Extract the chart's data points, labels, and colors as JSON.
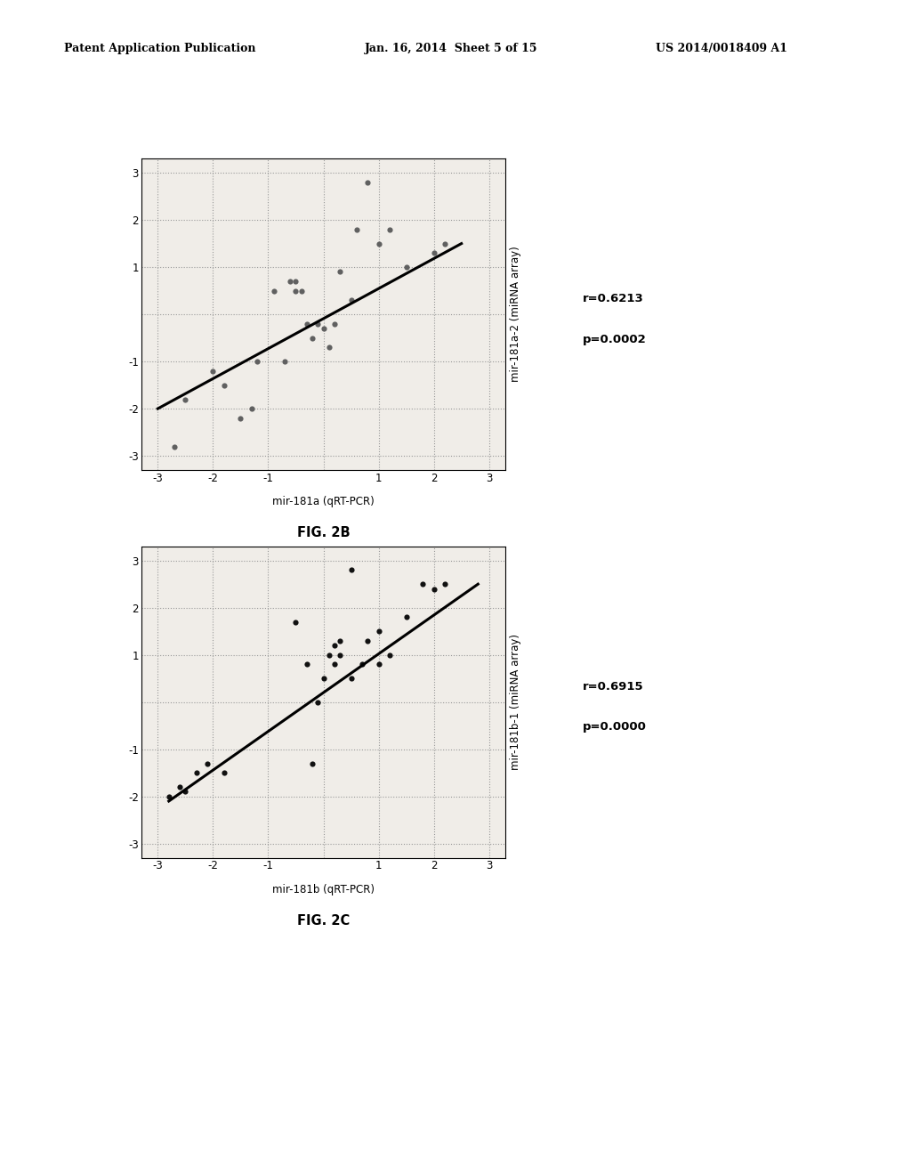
{
  "fig2b": {
    "title": "FIG. 2B",
    "xlabel": "mir-181a (qRT-PCR)",
    "ylabel": "mir-181a-2 (miRNA array)",
    "r_text": "r=0.6213",
    "p_text": "p=0.0002",
    "xlim": [
      -3.3,
      3.3
    ],
    "ylim": [
      -3.3,
      3.3
    ],
    "xticks": [
      -3,
      -2,
      -1,
      0,
      1,
      2,
      3
    ],
    "yticks": [
      -3,
      -2,
      -1,
      0,
      1,
      2,
      3
    ],
    "scatter_x": [
      -2.7,
      -2.5,
      -2.0,
      -1.8,
      -1.5,
      -1.3,
      -1.2,
      -0.9,
      -0.7,
      -0.6,
      -0.5,
      -0.5,
      -0.4,
      -0.3,
      -0.2,
      -0.1,
      0.0,
      0.1,
      0.2,
      0.3,
      0.5,
      0.6,
      0.8,
      1.0,
      1.2,
      1.5,
      2.0,
      2.2
    ],
    "scatter_y": [
      -2.8,
      -1.8,
      -1.2,
      -1.5,
      -2.2,
      -2.0,
      -1.0,
      0.5,
      -1.0,
      0.7,
      0.7,
      0.5,
      0.5,
      -0.2,
      -0.5,
      -0.2,
      -0.3,
      -0.7,
      -0.2,
      0.9,
      0.3,
      1.8,
      2.8,
      1.5,
      1.8,
      1.0,
      1.3,
      1.5
    ],
    "line_x": [
      -3.0,
      2.5
    ],
    "line_y": [
      -2.0,
      1.5
    ]
  },
  "fig2c": {
    "title": "FIG. 2C",
    "xlabel": "mir-181b (qRT-PCR)",
    "ylabel": "mir-181b-1 (miRNA array)",
    "r_text": "r=0.6915",
    "p_text": "p=0.0000",
    "xlim": [
      -3.3,
      3.3
    ],
    "ylim": [
      -3.3,
      3.3
    ],
    "xticks": [
      -3,
      -2,
      -1,
      0,
      1,
      2,
      3
    ],
    "yticks": [
      -3,
      -2,
      -1,
      0,
      1,
      2,
      3
    ],
    "scatter_x": [
      -2.8,
      -2.6,
      -2.5,
      -2.3,
      -2.1,
      -1.8,
      -0.5,
      -0.3,
      -0.2,
      -0.1,
      0.0,
      0.1,
      0.2,
      0.2,
      0.3,
      0.3,
      0.5,
      0.7,
      0.8,
      1.0,
      1.2,
      1.5,
      1.8,
      2.0,
      2.2,
      0.5,
      1.0
    ],
    "scatter_y": [
      -2.0,
      -1.8,
      -1.9,
      -1.5,
      -1.3,
      -1.5,
      1.7,
      0.8,
      -1.3,
      0.0,
      0.5,
      1.0,
      0.8,
      1.2,
      1.0,
      1.3,
      0.5,
      0.8,
      1.3,
      1.5,
      1.0,
      1.8,
      2.5,
      2.4,
      2.5,
      2.8,
      0.8
    ],
    "line_x": [
      -2.8,
      2.8
    ],
    "line_y": [
      -2.1,
      2.5
    ]
  },
  "header_parts": {
    "left": "Patent Application Publication",
    "middle": "Jan. 16, 2014  Sheet 5 of 15",
    "right": "US 2014/0018409 A1"
  },
  "bg_color": "#ffffff",
  "plot_bg": "#f0ede8",
  "scatter_color_2b": "#606060",
  "scatter_color_2c": "#111111",
  "line_color": "#000000",
  "grid_color": "#999999"
}
